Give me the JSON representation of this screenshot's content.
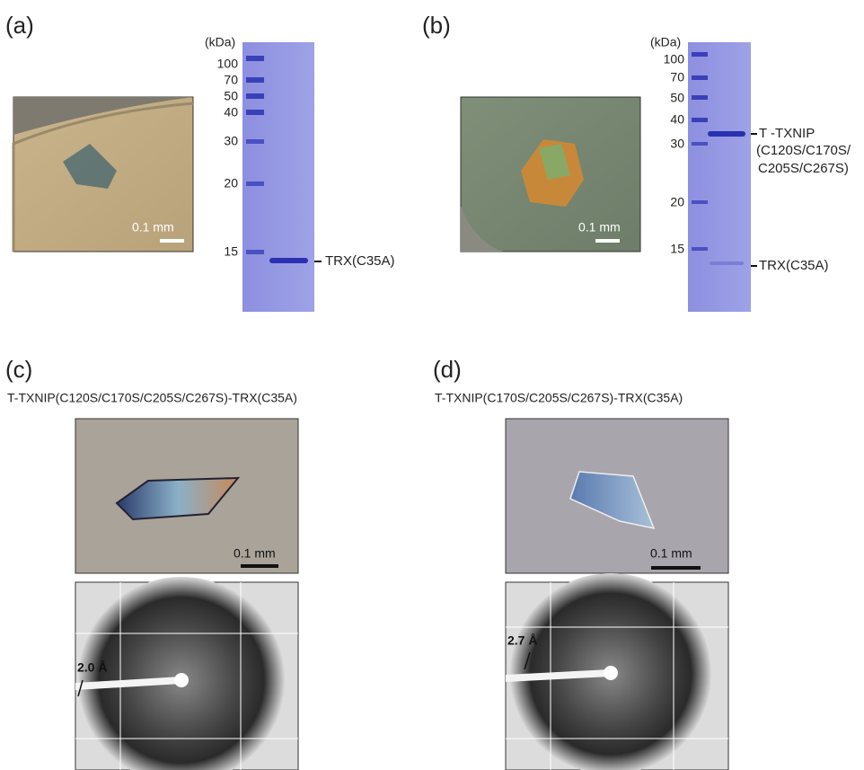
{
  "panel_a": {
    "label": "(a)",
    "scale_bar": "0.1 mm",
    "gel": {
      "unit": "(kDa)",
      "markers": [
        100,
        70,
        50,
        40,
        30,
        20,
        15
      ],
      "bands": [
        "TRX(C35A)"
      ]
    }
  },
  "panel_b": {
    "label": "(b)",
    "scale_bar": "0.1 mm",
    "gel": {
      "unit": "(kDa)",
      "markers": [
        100,
        70,
        50,
        40,
        30,
        20,
        15
      ],
      "bands": [
        "T -TXNIP",
        "(C120S/C170S/",
        "C205S/C267S)",
        "TRX(C35A)"
      ]
    }
  },
  "panel_c": {
    "label": "(c)",
    "title": "T-TXNIP(C120S/C170S/C205S/C267S)-TRX(C35A)",
    "scale_bar": "0.1 mm",
    "resolution": "2.0 Å"
  },
  "panel_d": {
    "label": "(d)",
    "title": "T-TXNIP(C170S/C205S/C267S)-TRX(C35A)",
    "scale_bar": "0.1 mm",
    "resolution": "2.7 Å"
  }
}
